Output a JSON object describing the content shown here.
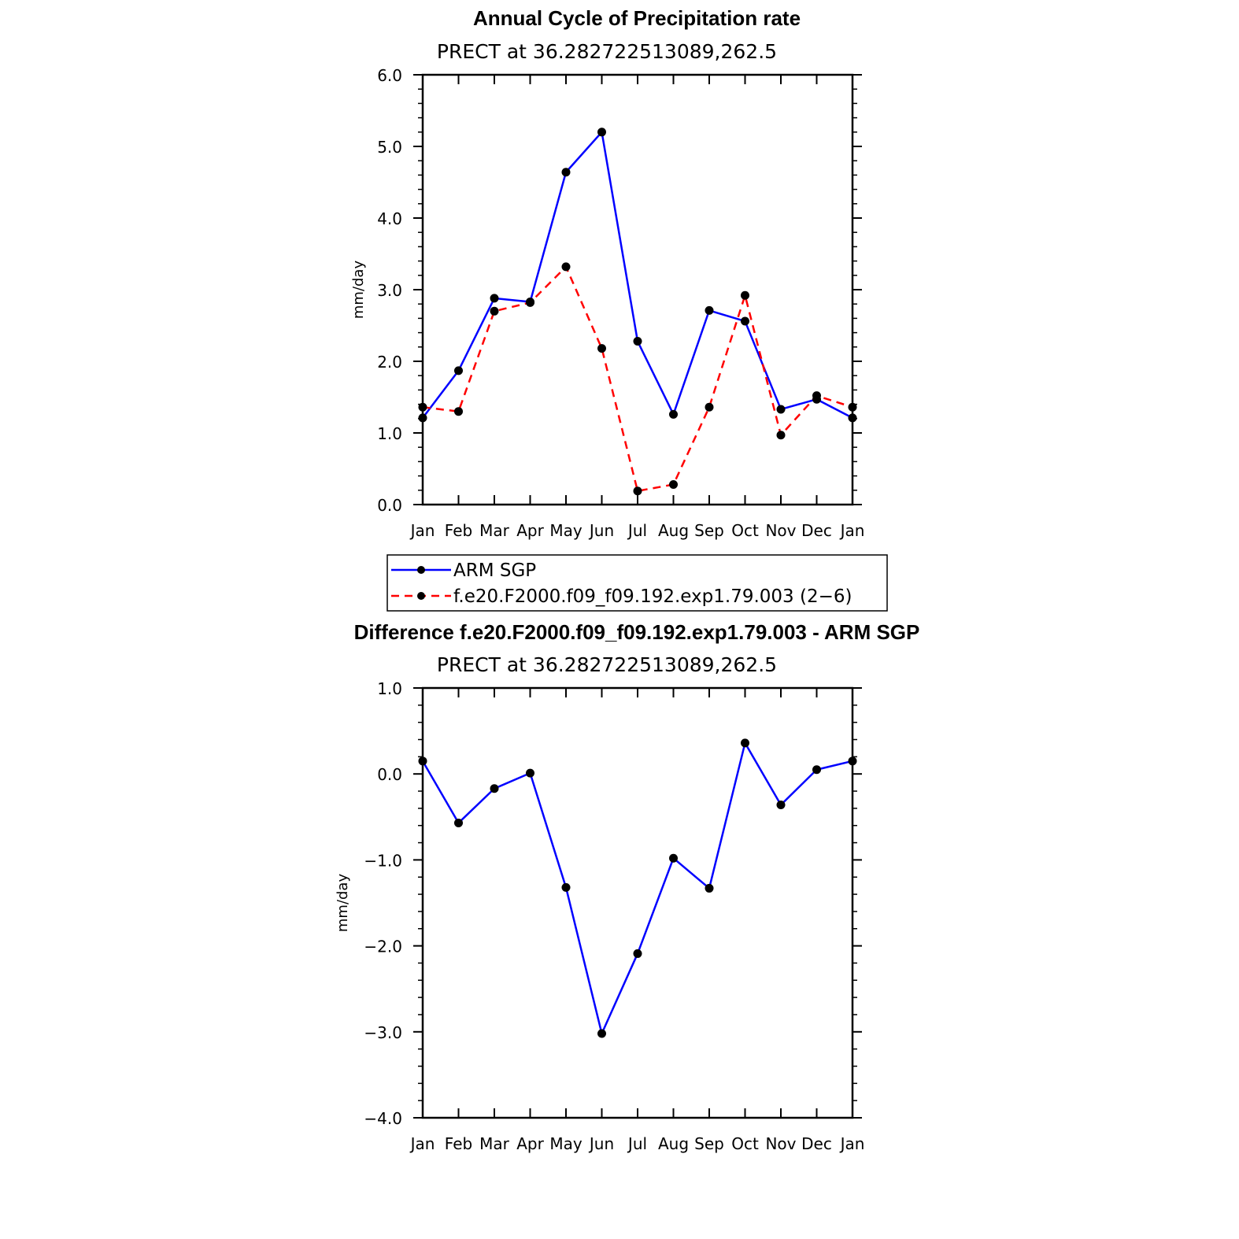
{
  "chart_data": [
    {
      "type": "line",
      "title": "Annual Cycle of Precipitation rate",
      "subtitle": "PRECT at 36.282722513089,262.5",
      "xlabel": "",
      "ylabel": "mm/day",
      "categories": [
        "Jan",
        "Feb",
        "Mar",
        "Apr",
        "May",
        "Jun",
        "Jul",
        "Aug",
        "Sep",
        "Oct",
        "Nov",
        "Dec",
        "Jan"
      ],
      "ylim": [
        0,
        6
      ],
      "yticks": [
        "0.0",
        "1.0",
        "2.0",
        "3.0",
        "4.0",
        "5.0",
        "6.0"
      ],
      "legend_position": "bottom",
      "series": [
        {
          "name": "ARM SGP",
          "color": "#0000ff",
          "dash": "solid",
          "values": [
            1.21,
            1.87,
            2.88,
            2.83,
            4.64,
            5.2,
            2.28,
            1.26,
            2.71,
            2.56,
            1.33,
            1.47,
            1.21
          ]
        },
        {
          "name": "f.e20.F2000.f09_f09.192.exp1.79.003 (2−6)",
          "color": "#ff0000",
          "dash": "dashed",
          "values": [
            1.36,
            1.3,
            2.7,
            2.82,
            3.32,
            2.18,
            0.19,
            0.28,
            1.36,
            2.92,
            0.97,
            1.52,
            1.36
          ]
        }
      ]
    },
    {
      "type": "line",
      "title": "Difference f.e20.F2000.f09_f09.192.exp1.79.003 - ARM SGP",
      "subtitle": "PRECT at 36.282722513089,262.5",
      "xlabel": "",
      "ylabel": "mm/day",
      "categories": [
        "Jan",
        "Feb",
        "Mar",
        "Apr",
        "May",
        "Jun",
        "Jul",
        "Aug",
        "Sep",
        "Oct",
        "Nov",
        "Dec",
        "Jan"
      ],
      "ylim": [
        -4,
        1
      ],
      "yticks": [
        "−4.0",
        "−3.0",
        "−2.0",
        "−1.0",
        "0.0",
        "1.0"
      ],
      "series": [
        {
          "color": "#0000ff",
          "dash": "solid",
          "values": [
            0.15,
            -0.57,
            -0.17,
            0.01,
            -1.32,
            -3.02,
            -2.09,
            -0.98,
            -1.33,
            0.36,
            -0.36,
            0.05,
            0.15
          ]
        }
      ]
    }
  ]
}
